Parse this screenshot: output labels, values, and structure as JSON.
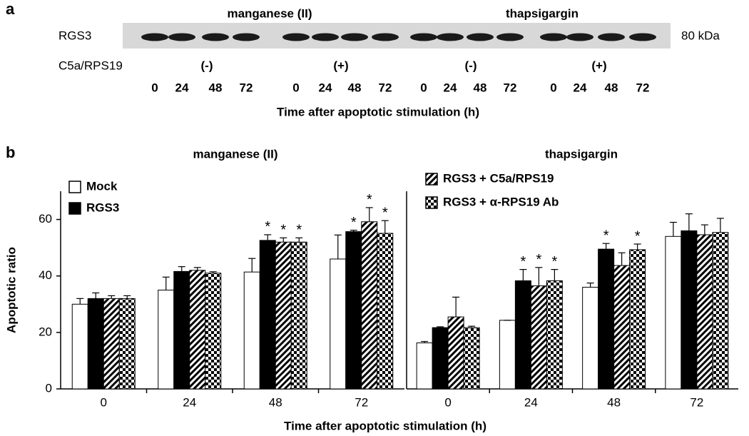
{
  "blot": {
    "panel_label": "a",
    "row_label": "RGS3",
    "size_label": "80 kDa",
    "treatments": [
      "manganese (II)",
      "thapsigargin"
    ],
    "condition_label": "C5a/RPS19",
    "conditions": [
      "(-)",
      "(+)",
      "(-)",
      "(+)"
    ],
    "lane_times": [
      "0",
      "24",
      "48",
      "72",
      "0",
      "24",
      "48",
      "72",
      "0",
      "24",
      "48",
      "72",
      "0",
      "24",
      "48",
      "72"
    ],
    "x_label": "Time after apoptotic stimulation (h)"
  },
  "panel_b_label": "b",
  "shared_x_label": "Time after apoptotic stimulation (h)",
  "chart_data": [
    {
      "type": "bar",
      "title": "manganese (II)",
      "y_label": "Apoptotic ratio",
      "categories": [
        "0",
        "24",
        "48",
        "72"
      ],
      "ylim": [
        0,
        70
      ],
      "yticks": [
        0,
        20,
        40,
        60
      ],
      "series": [
        {
          "name": "Mock",
          "color": "#ffffff",
          "pattern": "none",
          "values": [
            30,
            35,
            41.4,
            46
          ],
          "errors": [
            2,
            4.6,
            4.8,
            8.5
          ],
          "significance": [
            null,
            null,
            null,
            null
          ]
        },
        {
          "name": "RGS3",
          "color": "#000000",
          "pattern": "none",
          "values": [
            32,
            41.6,
            52.6,
            55.7
          ],
          "errors": [
            2,
            1.7,
            2,
            0.5
          ],
          "significance": [
            null,
            null,
            "*",
            "*"
          ]
        },
        {
          "color": "#000000",
          "pattern": "hatch",
          "values": [
            32,
            42,
            52,
            59.2
          ],
          "errors": [
            1,
            1,
            1.5,
            5
          ],
          "significance": [
            null,
            null,
            "*",
            "*"
          ]
        },
        {
          "color": "#000000",
          "pattern": "checker",
          "values": [
            32,
            41,
            52,
            55.1
          ],
          "errors": [
            1,
            0.5,
            1.5,
            4.5
          ],
          "significance": [
            null,
            null,
            "*",
            "*"
          ]
        }
      ]
    },
    {
      "type": "bar",
      "title": "thapsigargin",
      "categories": [
        "0",
        "24",
        "48",
        "72"
      ],
      "ylim": [
        0,
        70
      ],
      "series": [
        {
          "color": "#ffffff",
          "pattern": "none",
          "values": [
            16.3,
            24.3,
            36,
            54
          ],
          "errors": [
            0.5,
            0,
            1.5,
            5
          ],
          "significance": [
            null,
            null,
            null,
            null
          ]
        },
        {
          "color": "#000000",
          "pattern": "none",
          "values": [
            21.7,
            38.3,
            49.5,
            56
          ],
          "errors": [
            0.3,
            4,
            2,
            6
          ],
          "significance": [
            null,
            "*",
            "*",
            null
          ]
        },
        {
          "name": "RGS3 + C5a/RPS19",
          "color": "#000000",
          "pattern": "hatch",
          "values": [
            25.5,
            36.5,
            43.7,
            54.6
          ],
          "errors": [
            7,
            6.5,
            4.5,
            3.5
          ],
          "significance": [
            null,
            "*",
            null,
            null
          ]
        },
        {
          "name": "RGS3 + α-RPS19 Ab",
          "color": "#000000",
          "pattern": "checker",
          "values": [
            21.7,
            38.3,
            49.3,
            55.4
          ],
          "errors": [
            0.5,
            4,
            2,
            5
          ],
          "significance": [
            null,
            "*",
            "*",
            null
          ]
        }
      ]
    }
  ]
}
